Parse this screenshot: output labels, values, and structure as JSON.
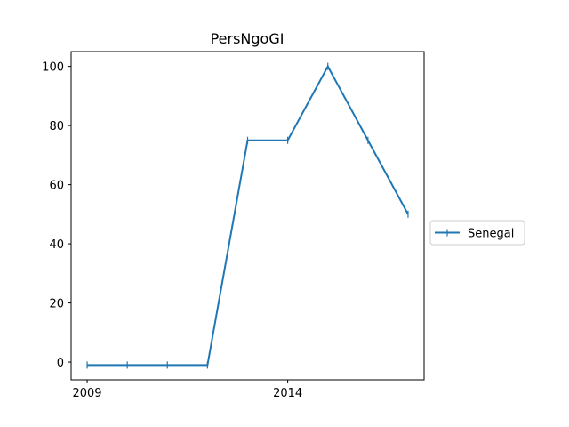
{
  "chart_data": {
    "type": "line",
    "title": "PersNgoGI",
    "xlabel": "",
    "ylabel": "",
    "x": [
      2009,
      2010,
      2011,
      2012,
      2013,
      2014,
      2015,
      2016,
      2017
    ],
    "series": [
      {
        "name": "Senegal",
        "color": "#1f77b4",
        "marker": "vline",
        "values": [
          -1,
          -1,
          -1,
          -1,
          75,
          75,
          100,
          75,
          50
        ]
      }
    ],
    "xlim": [
      2008.6,
      2017.4
    ],
    "ylim": [
      -6,
      105
    ],
    "xticks": [
      2009,
      2014
    ],
    "yticks": [
      0,
      20,
      40,
      60,
      80,
      100
    ],
    "grid": false,
    "legend_position": "center-right-outside"
  }
}
